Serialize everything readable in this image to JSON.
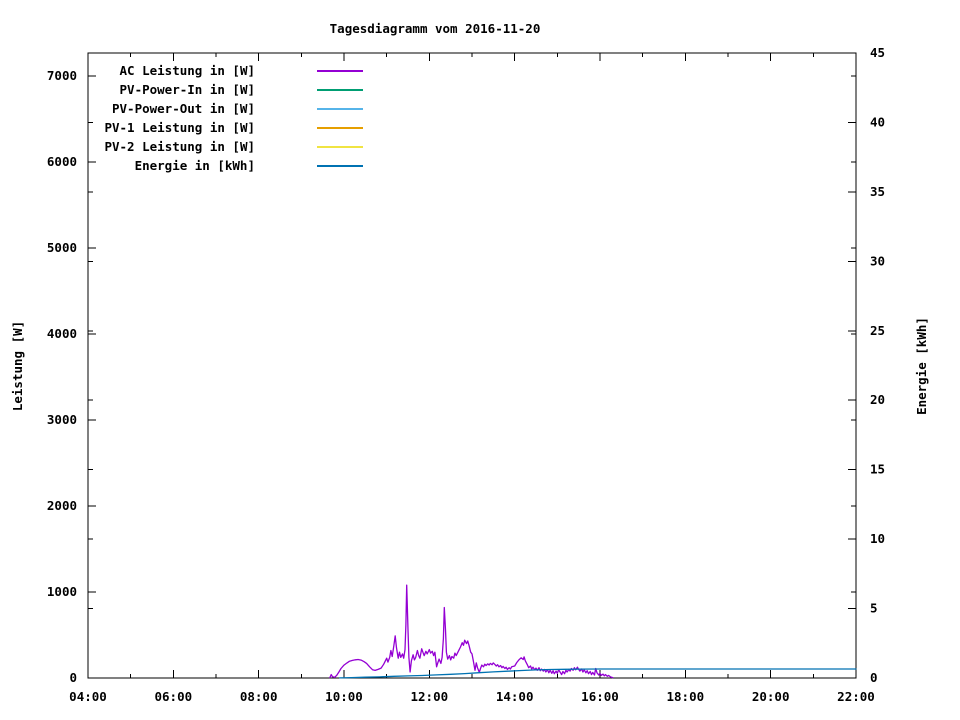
{
  "background": "#ffffff",
  "chart_data": {
    "type": "line",
    "title": "Tagesdiagramm vom 2016-11-20",
    "grid": false,
    "legend_position": "top-left-inside",
    "x_axis": {
      "unit": "time",
      "range": [
        4,
        22
      ],
      "ticks_major": [
        {
          "value": 4,
          "label": "04:00"
        },
        {
          "value": 6,
          "label": "06:00"
        },
        {
          "value": 8,
          "label": "08:00"
        },
        {
          "value": 10,
          "label": "10:00"
        },
        {
          "value": 12,
          "label": "12:00"
        },
        {
          "value": 14,
          "label": "14:00"
        },
        {
          "value": 16,
          "label": "16:00"
        },
        {
          "value": 18,
          "label": "18:00"
        },
        {
          "value": 20,
          "label": "20:00"
        },
        {
          "value": 22,
          "label": "22:00"
        }
      ],
      "ticks_minor": [
        5,
        7,
        9,
        11,
        13,
        15,
        17,
        19,
        21
      ]
    },
    "y_left": {
      "label": "Leistung [W]",
      "range": [
        0,
        7267
      ],
      "ticks": [
        0,
        1000,
        2000,
        3000,
        4000,
        5000,
        6000,
        7000
      ]
    },
    "y_right": {
      "label": "Energie [kWh]",
      "range": [
        0,
        45
      ],
      "ticks": [
        0,
        5,
        10,
        15,
        20,
        25,
        30,
        35,
        40,
        45
      ]
    },
    "legend": [
      {
        "label": "AC Leistung in [W]",
        "color": "#9400d3"
      },
      {
        "label": "PV-Power-In in [W]",
        "color": "#009e73"
      },
      {
        "label": "PV-Power-Out in [W]",
        "color": "#56b4e9"
      },
      {
        "label": "PV-1 Leistung in [W]",
        "color": "#e69f00"
      },
      {
        "label": "PV-2 Leistung in [W]",
        "color": "#f0e442"
      },
      {
        "label": "Energie in [kWh]",
        "color": "#0072b2"
      }
    ],
    "series": [
      {
        "name": "AC Leistung in [W]",
        "axis": "left",
        "color": "#9400d3",
        "points": [
          [
            9.67,
            5
          ],
          [
            9.7,
            40
          ],
          [
            9.73,
            15
          ],
          [
            9.78,
            8
          ],
          [
            9.83,
            30
          ],
          [
            9.88,
            70
          ],
          [
            9.93,
            110
          ],
          [
            10.0,
            150
          ],
          [
            10.07,
            175
          ],
          [
            10.13,
            195
          ],
          [
            10.2,
            205
          ],
          [
            10.27,
            212
          ],
          [
            10.33,
            215
          ],
          [
            10.4,
            208
          ],
          [
            10.47,
            190
          ],
          [
            10.53,
            170
          ],
          [
            10.6,
            130
          ],
          [
            10.67,
            95
          ],
          [
            10.73,
            88
          ],
          [
            10.8,
            100
          ],
          [
            10.87,
            115
          ],
          [
            10.93,
            160
          ],
          [
            11.0,
            230
          ],
          [
            11.03,
            185
          ],
          [
            11.07,
            240
          ],
          [
            11.1,
            320
          ],
          [
            11.13,
            250
          ],
          [
            11.17,
            380
          ],
          [
            11.2,
            490
          ],
          [
            11.23,
            350
          ],
          [
            11.27,
            230
          ],
          [
            11.3,
            300
          ],
          [
            11.33,
            240
          ],
          [
            11.37,
            280
          ],
          [
            11.4,
            230
          ],
          [
            11.43,
            330
          ],
          [
            11.45,
            620
          ],
          [
            11.47,
            1080
          ],
          [
            11.5,
            560
          ],
          [
            11.52,
            240
          ],
          [
            11.55,
            70
          ],
          [
            11.58,
            200
          ],
          [
            11.62,
            270
          ],
          [
            11.65,
            210
          ],
          [
            11.68,
            240
          ],
          [
            11.72,
            320
          ],
          [
            11.75,
            260
          ],
          [
            11.78,
            230
          ],
          [
            11.82,
            340
          ],
          [
            11.85,
            300
          ],
          [
            11.88,
            260
          ],
          [
            11.92,
            310
          ],
          [
            11.95,
            280
          ],
          [
            12.0,
            330
          ],
          [
            12.03,
            290
          ],
          [
            12.07,
            310
          ],
          [
            12.1,
            260
          ],
          [
            12.13,
            300
          ],
          [
            12.17,
            130
          ],
          [
            12.2,
            180
          ],
          [
            12.23,
            220
          ],
          [
            12.27,
            170
          ],
          [
            12.3,
            240
          ],
          [
            12.33,
            460
          ],
          [
            12.35,
            820
          ],
          [
            12.38,
            560
          ],
          [
            12.4,
            300
          ],
          [
            12.43,
            220
          ],
          [
            12.47,
            260
          ],
          [
            12.5,
            210
          ],
          [
            12.53,
            250
          ],
          [
            12.57,
            230
          ],
          [
            12.6,
            290
          ],
          [
            12.63,
            260
          ],
          [
            12.67,
            300
          ],
          [
            12.7,
            330
          ],
          [
            12.73,
            360
          ],
          [
            12.77,
            410
          ],
          [
            12.8,
            380
          ],
          [
            12.83,
            440
          ],
          [
            12.87,
            400
          ],
          [
            12.9,
            430
          ],
          [
            12.93,
            380
          ],
          [
            12.97,
            300
          ],
          [
            13.0,
            280
          ],
          [
            13.03,
            200
          ],
          [
            13.07,
            90
          ],
          [
            13.1,
            175
          ],
          [
            13.13,
            120
          ],
          [
            13.17,
            65
          ],
          [
            13.2,
            110
          ],
          [
            13.23,
            150
          ],
          [
            13.27,
            130
          ],
          [
            13.3,
            160
          ],
          [
            13.33,
            145
          ],
          [
            13.37,
            165
          ],
          [
            13.4,
            150
          ],
          [
            13.43,
            170
          ],
          [
            13.47,
            155
          ],
          [
            13.5,
            175
          ],
          [
            13.53,
            160
          ],
          [
            13.57,
            140
          ],
          [
            13.6,
            155
          ],
          [
            13.63,
            130
          ],
          [
            13.67,
            145
          ],
          [
            13.7,
            120
          ],
          [
            13.73,
            135
          ],
          [
            13.77,
            110
          ],
          [
            13.8,
            125
          ],
          [
            13.83,
            100
          ],
          [
            13.87,
            120
          ],
          [
            13.9,
            105
          ],
          [
            13.93,
            130
          ],
          [
            14.0,
            140
          ],
          [
            14.05,
            180
          ],
          [
            14.1,
            210
          ],
          [
            14.15,
            235
          ],
          [
            14.2,
            215
          ],
          [
            14.22,
            245
          ],
          [
            14.25,
            200
          ],
          [
            14.3,
            150
          ],
          [
            14.33,
            120
          ],
          [
            14.37,
            140
          ],
          [
            14.4,
            105
          ],
          [
            14.43,
            125
          ],
          [
            14.47,
            95
          ],
          [
            14.5,
            115
          ],
          [
            14.53,
            90
          ],
          [
            14.57,
            120
          ],
          [
            14.6,
            85
          ],
          [
            14.63,
            105
          ],
          [
            14.67,
            80
          ],
          [
            14.7,
            100
          ],
          [
            14.73,
            70
          ],
          [
            14.77,
            95
          ],
          [
            14.8,
            60
          ],
          [
            14.83,
            90
          ],
          [
            14.87,
            55
          ],
          [
            14.9,
            85
          ],
          [
            14.93,
            50
          ],
          [
            14.97,
            80
          ],
          [
            15.0,
            55
          ],
          [
            15.03,
            95
          ],
          [
            15.07,
            65
          ],
          [
            15.1,
            40
          ],
          [
            15.13,
            75
          ],
          [
            15.17,
            50
          ],
          [
            15.2,
            90
          ],
          [
            15.23,
            70
          ],
          [
            15.27,
            100
          ],
          [
            15.3,
            80
          ],
          [
            15.33,
            110
          ],
          [
            15.37,
            90
          ],
          [
            15.4,
            120
          ],
          [
            15.43,
            95
          ],
          [
            15.47,
            125
          ],
          [
            15.5,
            100
          ],
          [
            15.53,
            80
          ],
          [
            15.57,
            105
          ],
          [
            15.6,
            70
          ],
          [
            15.63,
            95
          ],
          [
            15.67,
            60
          ],
          [
            15.7,
            85
          ],
          [
            15.73,
            50
          ],
          [
            15.77,
            75
          ],
          [
            15.8,
            40
          ],
          [
            15.83,
            65
          ],
          [
            15.87,
            35
          ],
          [
            15.9,
            110
          ],
          [
            15.93,
            60
          ],
          [
            15.97,
            35
          ],
          [
            16.0,
            55
          ],
          [
            16.03,
            30
          ],
          [
            16.07,
            45
          ],
          [
            16.1,
            25
          ],
          [
            16.13,
            40
          ],
          [
            16.17,
            20
          ],
          [
            16.2,
            30
          ],
          [
            16.25,
            12
          ],
          [
            16.3,
            5
          ]
        ]
      },
      {
        "name": "PV-Power-In in [W]",
        "axis": "left",
        "color": "#009e73",
        "visible": false,
        "points": []
      },
      {
        "name": "PV-Power-Out in [W]",
        "axis": "left",
        "color": "#56b4e9",
        "visible": false,
        "points": []
      },
      {
        "name": "PV-1 Leistung in [W]",
        "axis": "left",
        "color": "#e69f00",
        "visible": false,
        "points": []
      },
      {
        "name": "PV-2 Leistung in [W]",
        "axis": "left",
        "color": "#f0e442",
        "visible": false,
        "points": []
      },
      {
        "name": "Energie in [kWh]",
        "axis": "right",
        "color": "#0072b2",
        "points": [
          [
            9.9,
            0.01
          ],
          [
            10.17,
            0.03
          ],
          [
            10.5,
            0.06
          ],
          [
            10.83,
            0.08
          ],
          [
            11.17,
            0.12
          ],
          [
            11.5,
            0.15
          ],
          [
            11.83,
            0.18
          ],
          [
            12.17,
            0.22
          ],
          [
            12.5,
            0.27
          ],
          [
            12.83,
            0.32
          ],
          [
            13.17,
            0.38
          ],
          [
            13.5,
            0.44
          ],
          [
            13.83,
            0.49
          ],
          [
            14.17,
            0.54
          ],
          [
            14.5,
            0.58
          ],
          [
            14.83,
            0.61
          ],
          [
            15.17,
            0.63
          ],
          [
            15.5,
            0.64
          ],
          [
            16.0,
            0.648
          ],
          [
            16.5,
            0.65
          ],
          [
            22.0,
            0.65
          ]
        ]
      }
    ]
  }
}
